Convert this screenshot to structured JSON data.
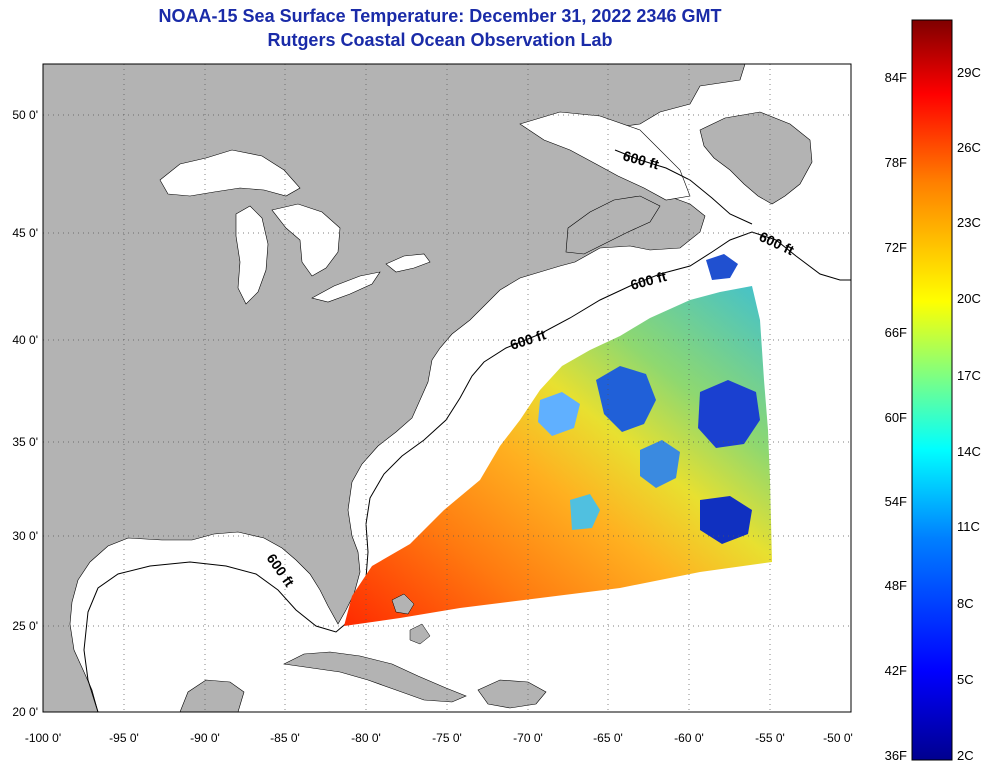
{
  "title": {
    "line1": "NOAA-15 Sea Surface Temperature:  December 31, 2022 2346 GMT",
    "line2": "Rutgers Coastal Ocean Observation Lab"
  },
  "map": {
    "lon_ticks": [
      "-100 0'",
      "-95 0'",
      "-90 0'",
      "-85 0'",
      "-80 0'",
      "-75 0'",
      "-70 0'",
      "-65 0'",
      "-60 0'",
      "-55 0'",
      "-50 0'"
    ],
    "lat_ticks": [
      "50 0'",
      "45 0'",
      "40 0'",
      "35 0'",
      "30 0'",
      "25 0'",
      "20 0'"
    ],
    "depth_labels": [
      "600 ft",
      "600 ft",
      "600 ft",
      "600 ft",
      "600 ft"
    ],
    "colors": {
      "land": "#b3b3b3",
      "ocean": "#ffffff",
      "grid": "#555555"
    }
  },
  "colorbar": {
    "f_labels": [
      "84F",
      "78F",
      "72F",
      "66F",
      "60F",
      "54F",
      "48F",
      "42F",
      "36F"
    ],
    "c_labels": [
      "29C",
      "26C",
      "23C",
      "20C",
      "17C",
      "14C",
      "11C",
      "8C",
      "5C",
      "2C"
    ],
    "colors": [
      "#7f0000",
      "#ff0000",
      "#ff8000",
      "#ffff00",
      "#80ff80",
      "#00ffff",
      "#0080ff",
      "#0000ff",
      "#00008f"
    ]
  }
}
